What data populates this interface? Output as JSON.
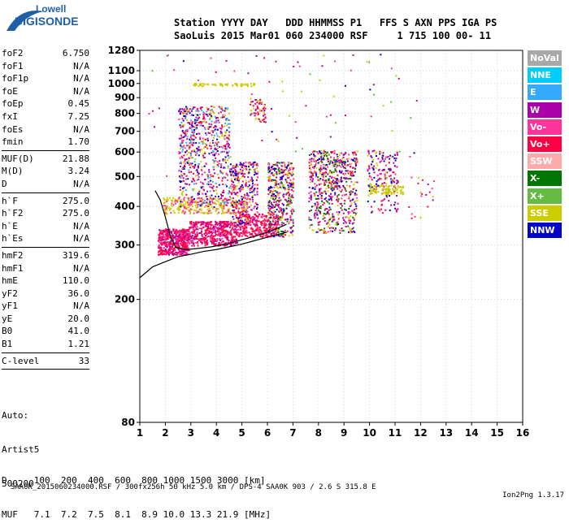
{
  "logo": {
    "line1": "Lowell",
    "line2": "DIGISONDE"
  },
  "header": {
    "columns": "Station YYYY DAY   DDD HHMMSS P1   FFS S AXN PPS IGA PS",
    "values": "SaoLuis 2015 Mar01 060 234000 RSF     1 715 100 00- 11"
  },
  "params": [
    {
      "label": "foF2",
      "value": "6.750"
    },
    {
      "label": "foF1",
      "value": "N/A"
    },
    {
      "label": "foF1p",
      "value": "N/A"
    },
    {
      "label": "foE",
      "value": "N/A"
    },
    {
      "label": "foEp",
      "value": "0.45"
    },
    {
      "label": "fxI",
      "value": "7.25"
    },
    {
      "label": "foEs",
      "value": "N/A"
    },
    {
      "label": "fmin",
      "value": "1.70"
    },
    {
      "label": "MUF(D)",
      "value": "21.88"
    },
    {
      "label": "M(D)",
      "value": "3.24"
    },
    {
      "label": "D",
      "value": "N/A"
    },
    {
      "label": "h`F",
      "value": "275.0"
    },
    {
      "label": "h`F2",
      "value": "275.0"
    },
    {
      "label": "h`E",
      "value": "N/A"
    },
    {
      "label": "h`Es",
      "value": "N/A"
    },
    {
      "label": "hmF2",
      "value": "319.6"
    },
    {
      "label": "hmF1",
      "value": "N/A"
    },
    {
      "label": "hmE",
      "value": "110.0"
    },
    {
      "label": "yF2",
      "value": "36.0"
    },
    {
      "label": "yF1",
      "value": "N/A"
    },
    {
      "label": "yE",
      "value": "20.0"
    },
    {
      "label": "B0",
      "value": "41.0"
    },
    {
      "label": "B1",
      "value": "1.21"
    },
    {
      "label": "C-level",
      "value": "33"
    }
  ],
  "auto": {
    "line1": "Auto:",
    "line2": "Artist5",
    "line3": "500200"
  },
  "legend": [
    {
      "label": "NoVal",
      "color": "#a8a8a8"
    },
    {
      "label": "NNE",
      "color": "#00ccff"
    },
    {
      "label": "E",
      "color": "#33aaff"
    },
    {
      "label": "W",
      "color": "#aa00aa"
    },
    {
      "label": "Vo-",
      "color": "#ff3399"
    },
    {
      "label": "Vo+",
      "color": "#ff0044"
    },
    {
      "label": "SSW",
      "color": "#ffaaaa"
    },
    {
      "label": "X-",
      "color": "#007700"
    },
    {
      "label": "X+",
      "color": "#66bb44"
    },
    {
      "label": "SSE",
      "color": "#cccc00"
    },
    {
      "label": "NNW",
      "color": "#0000cc"
    }
  ],
  "muf_table": {
    "d_row": "D     100  200  400  600  800 1000 1500 3000 [km]",
    "muf_row": "MUF   7.1  7.2  7.5  8.1  8.9 10.0 13.3 21.9 [MHz]"
  },
  "footer": {
    "left": "SAA0K_2015060234000.RSF / 300fx256h 50 kHz 5.0 km / DPS-4 SAA0K 903 / 2.6 S 315.8 E",
    "right": "Ion2Png 1.3.17"
  },
  "chart_data": {
    "type": "scatter",
    "title": "",
    "xlabel": "",
    "ylabel": "",
    "xlim": [
      1,
      16
    ],
    "ylim": [
      80,
      1280
    ],
    "y_scale": "log",
    "x_ticks": [
      1,
      2,
      3,
      4,
      5,
      6,
      7,
      8,
      9,
      10,
      11,
      12,
      13,
      14,
      15,
      16
    ],
    "x_tick_labels": [
      "1",
      "2",
      "3",
      "4",
      "5",
      "6",
      "7",
      "8",
      "9",
      "10",
      "11",
      "12",
      "13",
      "14",
      "15",
      "16"
    ],
    "y_ticks": [
      80,
      200,
      300,
      400,
      500,
      600,
      700,
      800,
      900,
      1000,
      1100,
      1280
    ],
    "y_tick_labels": [
      "80",
      "200",
      "300",
      "400",
      "500",
      "600",
      "700",
      "800",
      "900",
      "1000",
      "1100",
      "1280"
    ],
    "grid": true,
    "bands": [
      {
        "xr": [
          1.7,
          2.9
        ],
        "yr": [
          280,
          340
        ],
        "n": 520,
        "colors": [
          "#ff0044",
          "#ff3399",
          "#aa00aa",
          "#ff0044"
        ]
      },
      {
        "xr": [
          2.9,
          4.8
        ],
        "yr": [
          300,
          360
        ],
        "n": 500,
        "colors": [
          "#ff0044",
          "#ff3399",
          "#aa00aa",
          "#ff0044"
        ]
      },
      {
        "xr": [
          4.8,
          6.4
        ],
        "yr": [
          320,
          380
        ],
        "n": 300,
        "colors": [
          "#ff0044",
          "#ff3399",
          "#ff0044"
        ]
      },
      {
        "xr": [
          1.9,
          5.2
        ],
        "yr": [
          380,
          430
        ],
        "n": 300,
        "colors": [
          "#cccc00",
          "#cccc00",
          "#ff3399"
        ]
      },
      {
        "xr": [
          2.5,
          4.5
        ],
        "yr": [
          400,
          850
        ],
        "n": 700,
        "colors": [
          "#ff0044",
          "#aa00aa",
          "#ff3399",
          "#0000cc",
          "#cccc00",
          "#33aaff"
        ]
      },
      {
        "xr": [
          4.5,
          5.6
        ],
        "yr": [
          350,
          560
        ],
        "n": 320,
        "colors": [
          "#ff0044",
          "#aa00aa",
          "#ff3399",
          "#0000cc",
          "#cccc00"
        ]
      },
      {
        "xr": [
          5.3,
          5.9
        ],
        "yr": [
          750,
          900
        ],
        "n": 60,
        "colors": [
          "#cccc00",
          "#ff0044",
          "#aa00aa"
        ]
      },
      {
        "xr": [
          3.0,
          5.5
        ],
        "yr": [
          985,
          1005
        ],
        "n": 60,
        "colors": [
          "#cccc00"
        ]
      },
      {
        "xr": [
          6.0,
          7.0
        ],
        "yr": [
          320,
          560
        ],
        "n": 420,
        "colors": [
          "#ff0044",
          "#aa00aa",
          "#ff3399",
          "#0000cc",
          "#cccc00",
          "#007700"
        ]
      },
      {
        "xr": [
          7.6,
          9.5
        ],
        "yr": [
          330,
          610
        ],
        "n": 650,
        "colors": [
          "#ff0044",
          "#aa00aa",
          "#ff3399",
          "#0000cc",
          "#cccc00",
          "#007700"
        ]
      },
      {
        "xr": [
          9.9,
          11.1
        ],
        "yr": [
          380,
          610
        ],
        "n": 180,
        "colors": [
          "#ff0044",
          "#aa00aa",
          "#cccc00",
          "#0000cc",
          "#ff3399"
        ]
      },
      {
        "xr": [
          10.0,
          11.3
        ],
        "yr": [
          440,
          470
        ],
        "n": 90,
        "colors": [
          "#cccc00"
        ]
      },
      {
        "xr": [
          11.5,
          12.5
        ],
        "yr": [
          360,
          500
        ],
        "n": 20,
        "colors": [
          "#ff0044",
          "#aa00aa",
          "#cccc00",
          "#ff3399"
        ]
      },
      {
        "xr": [
          1.2,
          12.0
        ],
        "yr": [
          500,
          1250
        ],
        "n": 90,
        "colors": [
          "#ff0044",
          "#aa00aa",
          "#cccc00",
          "#0000cc",
          "#ff3399",
          "#66bb44"
        ]
      }
    ],
    "lines": [
      {
        "name": "",
        "color": "#000000",
        "x": [
          1,
          1.5,
          2,
          2.5,
          3,
          3.5,
          4,
          4.5,
          5,
          5.5,
          6,
          6.5,
          6.75
        ],
        "y": [
          235,
          255,
          265,
          275,
          280,
          286,
          290,
          296,
          302,
          310,
          318,
          326,
          330
        ]
      },
      {
        "name": "",
        "color": "#000000",
        "x": [
          1.6,
          1.8,
          2.0,
          2.2,
          2.4,
          2.8,
          3.2,
          3.8,
          4.4,
          5.0,
          5.5,
          6.0,
          6.4,
          6.75
        ],
        "y": [
          450,
          420,
          370,
          320,
          295,
          290,
          292,
          296,
          302,
          312,
          320,
          330,
          340,
          350
        ]
      }
    ]
  }
}
